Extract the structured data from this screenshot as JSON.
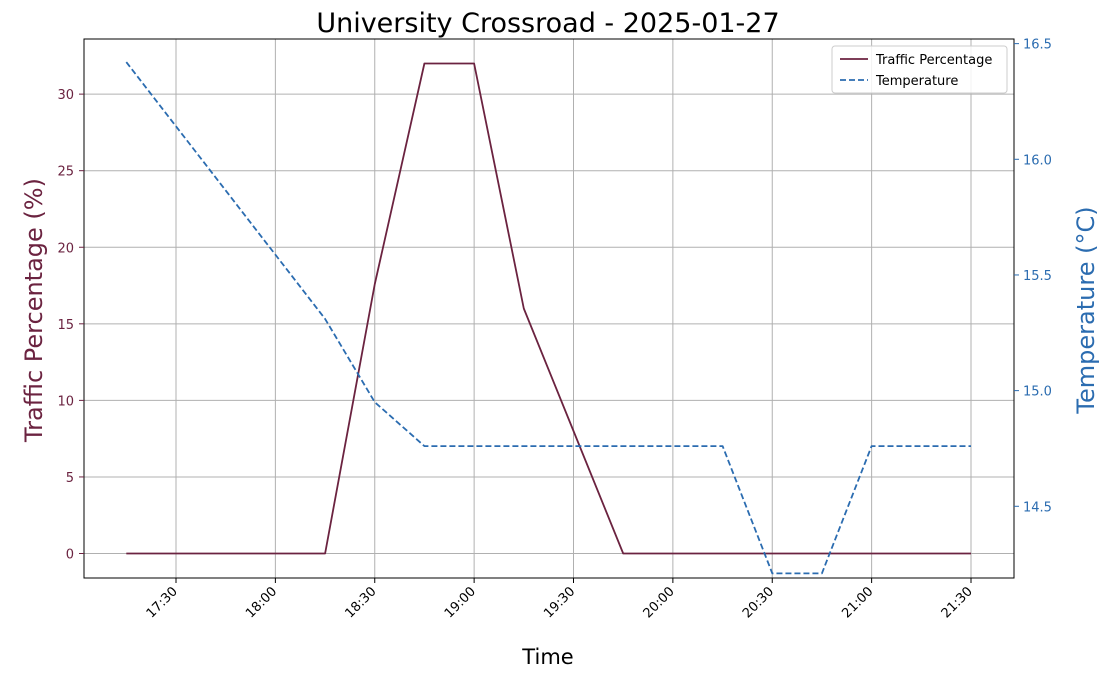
{
  "chart_data": {
    "type": "line",
    "title": "University Crossroad - 2025-01-27",
    "xlabel": "Time",
    "ylabel_left": "Traffic Percentage (%)",
    "ylabel_right": "Temperature (°C)",
    "x": [
      "17:15",
      "17:45",
      "18:15",
      "18:30",
      "18:45",
      "19:00",
      "19:15",
      "19:30",
      "19:45",
      "20:15",
      "20:30",
      "20:45",
      "21:00",
      "21:30"
    ],
    "x_ticks": [
      "17:30",
      "18:00",
      "18:30",
      "19:00",
      "19:30",
      "20:00",
      "20:30",
      "21:00",
      "21:30"
    ],
    "y_left_ticks": [
      0,
      5,
      10,
      15,
      20,
      25,
      30
    ],
    "y_right_ticks": [
      "14.5",
      "15.0",
      "15.5",
      "16.0",
      "16.5"
    ],
    "ylim_left": [
      -1.6,
      33.6
    ],
    "ylim_right": [
      14.19,
      16.52
    ],
    "grid": true,
    "legend_position": "top-right",
    "series": [
      {
        "name": "Traffic Percentage",
        "axis": "left",
        "color": "#6b2340",
        "style": "solid",
        "points": [
          [
            "17:15",
            0
          ],
          [
            "18:15",
            0
          ],
          [
            "18:30",
            17.6
          ],
          [
            "18:45",
            32
          ],
          [
            "19:00",
            32
          ],
          [
            "19:15",
            16
          ],
          [
            "19:30",
            8
          ],
          [
            "19:45",
            0
          ],
          [
            "21:30",
            0
          ]
        ]
      },
      {
        "name": "Temperature",
        "axis": "right",
        "color": "#2b6cb0",
        "style": "dashed",
        "points": [
          [
            "17:15",
            16.42
          ],
          [
            "18:15",
            15.31
          ],
          [
            "18:30",
            14.95
          ],
          [
            "18:45",
            14.76
          ],
          [
            "20:15",
            14.76
          ],
          [
            "20:30",
            14.21
          ],
          [
            "20:45",
            14.21
          ],
          [
            "21:00",
            14.76
          ],
          [
            "21:30",
            14.76
          ]
        ]
      }
    ]
  }
}
